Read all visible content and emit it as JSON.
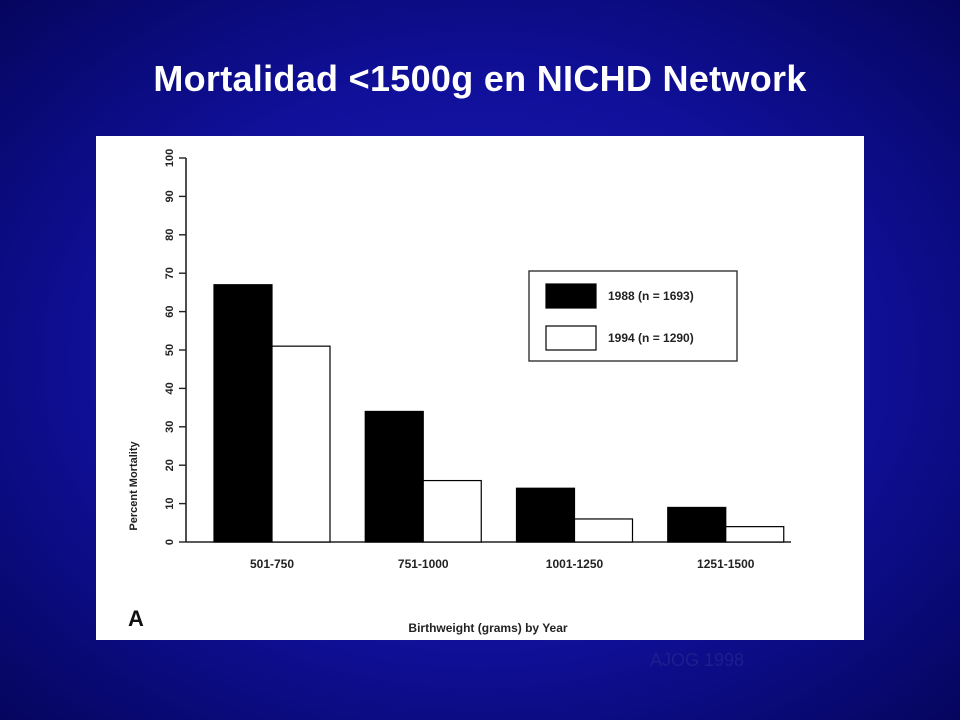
{
  "slide": {
    "title": "Mortalidad <1500g en NICHD Network",
    "source": "AJOG 1998"
  },
  "colors": {
    "background": "#10109a",
    "title_text": "#ffffff",
    "series_1988": "#000000",
    "series_1994": "#ffffff"
  },
  "chart_data": {
    "type": "bar",
    "title": "",
    "panel_label": "A",
    "xlabel": "Birthweight (grams) by Year",
    "ylabel": "Percent Mortality",
    "categories": [
      "501-750",
      "751-1000",
      "1001-1250",
      "1251-1500"
    ],
    "series": [
      {
        "name": "1988 (n = 1693)",
        "values": [
          67,
          34,
          14,
          9
        ]
      },
      {
        "name": "1994 (n = 1290)",
        "values": [
          51,
          16,
          6,
          4
        ]
      }
    ],
    "ylim": [
      0,
      100
    ],
    "yticks": [
      0,
      10,
      20,
      30,
      40,
      50,
      60,
      70,
      80,
      90,
      100
    ],
    "grid": false,
    "legend_position": "top-right"
  }
}
